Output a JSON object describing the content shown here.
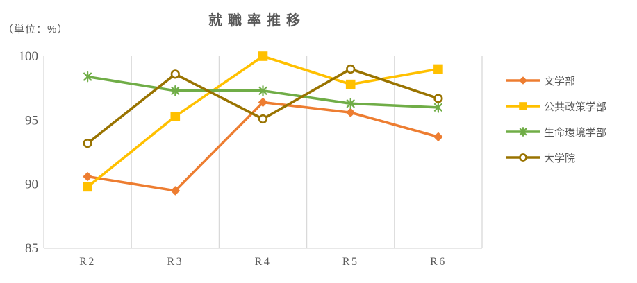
{
  "chart_data": {
    "type": "line",
    "title": "就職率推移",
    "unit_label": "（単位：%）",
    "categories": [
      "R2",
      "R3",
      "R4",
      "R5",
      "R6"
    ],
    "series": [
      {
        "name": "文学部",
        "color": "#ED7D31",
        "marker": "diamond",
        "values": [
          90.6,
          89.5,
          96.4,
          95.6,
          93.7
        ]
      },
      {
        "name": "公共政策学部",
        "color": "#FFC000",
        "marker": "square",
        "values": [
          89.8,
          95.3,
          100.0,
          97.8,
          99.0
        ]
      },
      {
        "name": "生命環境学部",
        "color": "#70AD47",
        "marker": "asterisk",
        "values": [
          98.4,
          97.3,
          97.3,
          96.3,
          96.0
        ]
      },
      {
        "name": "大学院",
        "color": "#997300",
        "marker": "circle-open",
        "values": [
          93.2,
          98.6,
          95.1,
          99.0,
          96.7
        ]
      }
    ],
    "ylim": [
      85,
      100
    ],
    "yticks": [
      100,
      95,
      90,
      85
    ],
    "grid": "vertical",
    "grid_color": "#D9D9D9",
    "axis_text_color": "#595959",
    "legend_position": "right"
  }
}
